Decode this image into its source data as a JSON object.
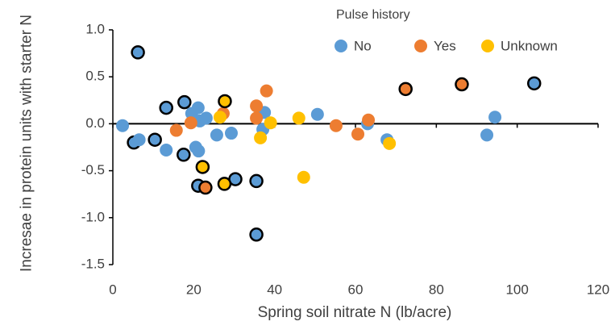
{
  "chart_data": {
    "type": "scatter",
    "x_label": "Spring soil nitrate N (lb/acre)",
    "y_label": "Incresae in protein units with starter N",
    "legend_title": "Pulse history",
    "legend": "top",
    "xlim": [
      0,
      120
    ],
    "xticks": [
      0,
      20,
      40,
      60,
      80,
      100,
      120
    ],
    "ylim": [
      -1.5,
      1.0
    ],
    "yticks": [
      {
        "value": -1.5,
        "label": "-1.5"
      },
      {
        "value": -1.0,
        "label": "-1.0"
      },
      {
        "value": -0.5,
        "label": "-0.5"
      },
      {
        "value": 0,
        "label": "0.0"
      },
      {
        "value": 0.5,
        "label": "0.5"
      },
      {
        "value": 1.0,
        "label": "1.0"
      }
    ],
    "series": [
      {
        "name": "No",
        "color": "#5b9bd5",
        "x": [
          2.4,
          5.2,
          6.5,
          6.2,
          10.4,
          13.2,
          13.2,
          17.7,
          17.5,
          19.5,
          20.5,
          21.2,
          21.1,
          21.5,
          21.1,
          23.1,
          25.7,
          29.3,
          30.3,
          35.5,
          35.5,
          37.5,
          37.1,
          50.6,
          63,
          67.8,
          92.5,
          94.5,
          104.2
        ],
        "values": [
          -0.02,
          -0.2,
          -0.17,
          0.76,
          -0.17,
          0.17,
          -0.28,
          0.23,
          -0.33,
          0.11,
          -0.25,
          -0.29,
          0.17,
          0.03,
          -0.66,
          0.06,
          -0.12,
          -0.1,
          -0.59,
          -0.61,
          -1.18,
          0.12,
          -0.06,
          0.1,
          0.0,
          -0.17,
          -0.12,
          0.07,
          0.43
        ],
        "outlined": [
          false,
          true,
          false,
          true,
          true,
          true,
          false,
          true,
          true,
          false,
          false,
          false,
          false,
          false,
          true,
          false,
          false,
          false,
          true,
          true,
          true,
          false,
          false,
          false,
          false,
          false,
          false,
          false,
          true
        ]
      },
      {
        "name": "Yes",
        "color": "#ed7d31",
        "x": [
          15.7,
          19.3,
          22.9,
          27.3,
          35.5,
          35.5,
          38,
          55.2,
          60.6,
          63.2,
          72.4,
          86.3
        ],
        "values": [
          -0.07,
          0.01,
          -0.68,
          0.11,
          0.19,
          0.06,
          0.35,
          -0.02,
          -0.11,
          0.04,
          0.37,
          0.42
        ],
        "outlined": [
          false,
          false,
          true,
          false,
          false,
          false,
          false,
          false,
          false,
          false,
          true,
          true
        ]
      },
      {
        "name": "Unknown",
        "color": "#ffc000",
        "x": [
          26.5,
          27.7,
          22.2,
          27.6,
          36.5,
          39,
          46,
          47.2,
          68.4
        ],
        "values": [
          0.07,
          0.24,
          -0.46,
          -0.64,
          -0.15,
          0.01,
          0.06,
          -0.57,
          -0.21
        ],
        "outlined": [
          false,
          true,
          true,
          true,
          false,
          false,
          false,
          false,
          false
        ]
      }
    ]
  }
}
